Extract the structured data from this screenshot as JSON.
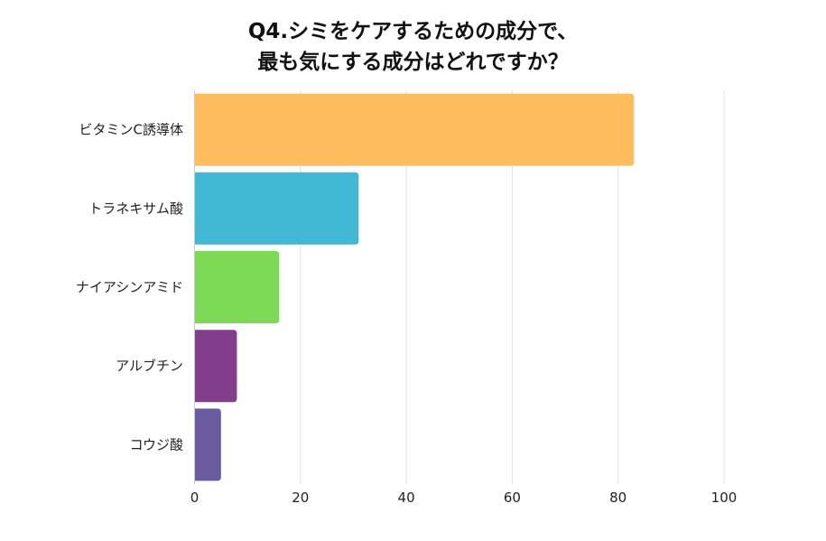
{
  "chart_data": {
    "type": "bar",
    "orientation": "horizontal",
    "title_lines": [
      "Q4.シミをケアするための成分で、",
      "最も気にする成分はどれですか？"
    ],
    "categories": [
      "ビタミンC誘導体",
      "トラネキサム酸",
      "ナイアシンアミド",
      "アルブチン",
      "コウジ酸"
    ],
    "values": [
      83,
      31,
      16,
      8,
      5
    ],
    "colors": [
      "#FDBC5E",
      "#42B8D5",
      "#7ED957",
      "#823E8A",
      "#6A5C9E"
    ],
    "xlim": [
      0,
      100
    ],
    "xticks": [
      0,
      20,
      40,
      60,
      80,
      100
    ],
    "grid": true,
    "xlabel": "",
    "ylabel": ""
  }
}
